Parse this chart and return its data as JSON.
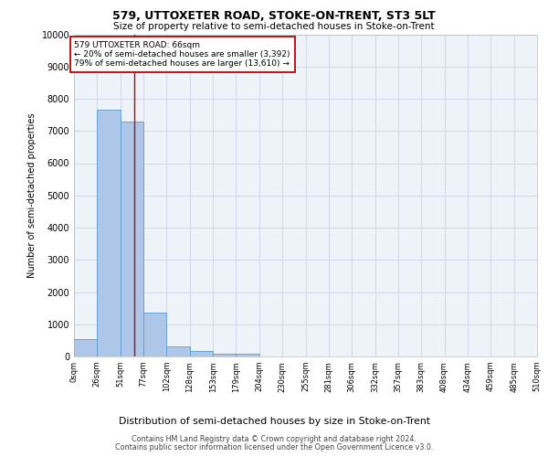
{
  "title": "579, UTTOXETER ROAD, STOKE-ON-TRENT, ST3 5LT",
  "subtitle": "Size of property relative to semi-detached houses in Stoke-on-Trent",
  "xlabel": "Distribution of semi-detached houses by size in Stoke-on-Trent",
  "ylabel": "Number of semi-detached properties",
  "footer1": "Contains HM Land Registry data © Crown copyright and database right 2024.",
  "footer2": "Contains public sector information licensed under the Open Government Licence v3.0.",
  "bin_labels": [
    "0sqm",
    "26sqm",
    "51sqm",
    "77sqm",
    "102sqm",
    "128sqm",
    "153sqm",
    "179sqm",
    "204sqm",
    "230sqm",
    "255sqm",
    "281sqm",
    "306sqm",
    "332sqm",
    "357sqm",
    "383sqm",
    "408sqm",
    "434sqm",
    "459sqm",
    "485sqm",
    "510sqm"
  ],
  "bar_values": [
    550,
    7650,
    7300,
    1350,
    310,
    160,
    95,
    80,
    0,
    0,
    0,
    0,
    0,
    0,
    0,
    0,
    0,
    0,
    0,
    0
  ],
  "bar_color": "#aec6e8",
  "bar_edge_color": "#5b9bd5",
  "property_sqm": 66,
  "property_line_color": "#c00000",
  "annotation_text_line1": "579 UTTOXETER ROAD: 66sqm",
  "annotation_text_line2": "← 20% of semi-detached houses are smaller (3,392)",
  "annotation_text_line3": "79% of semi-detached houses are larger (13,610) →",
  "annotation_box_color": "#c00000",
  "ylim": [
    0,
    10000
  ],
  "yticks": [
    0,
    1000,
    2000,
    3000,
    4000,
    5000,
    6000,
    7000,
    8000,
    9000,
    10000
  ],
  "grid_color": "#d0d8e8",
  "bg_color": "#eef2f9",
  "bin_width": 25.5
}
